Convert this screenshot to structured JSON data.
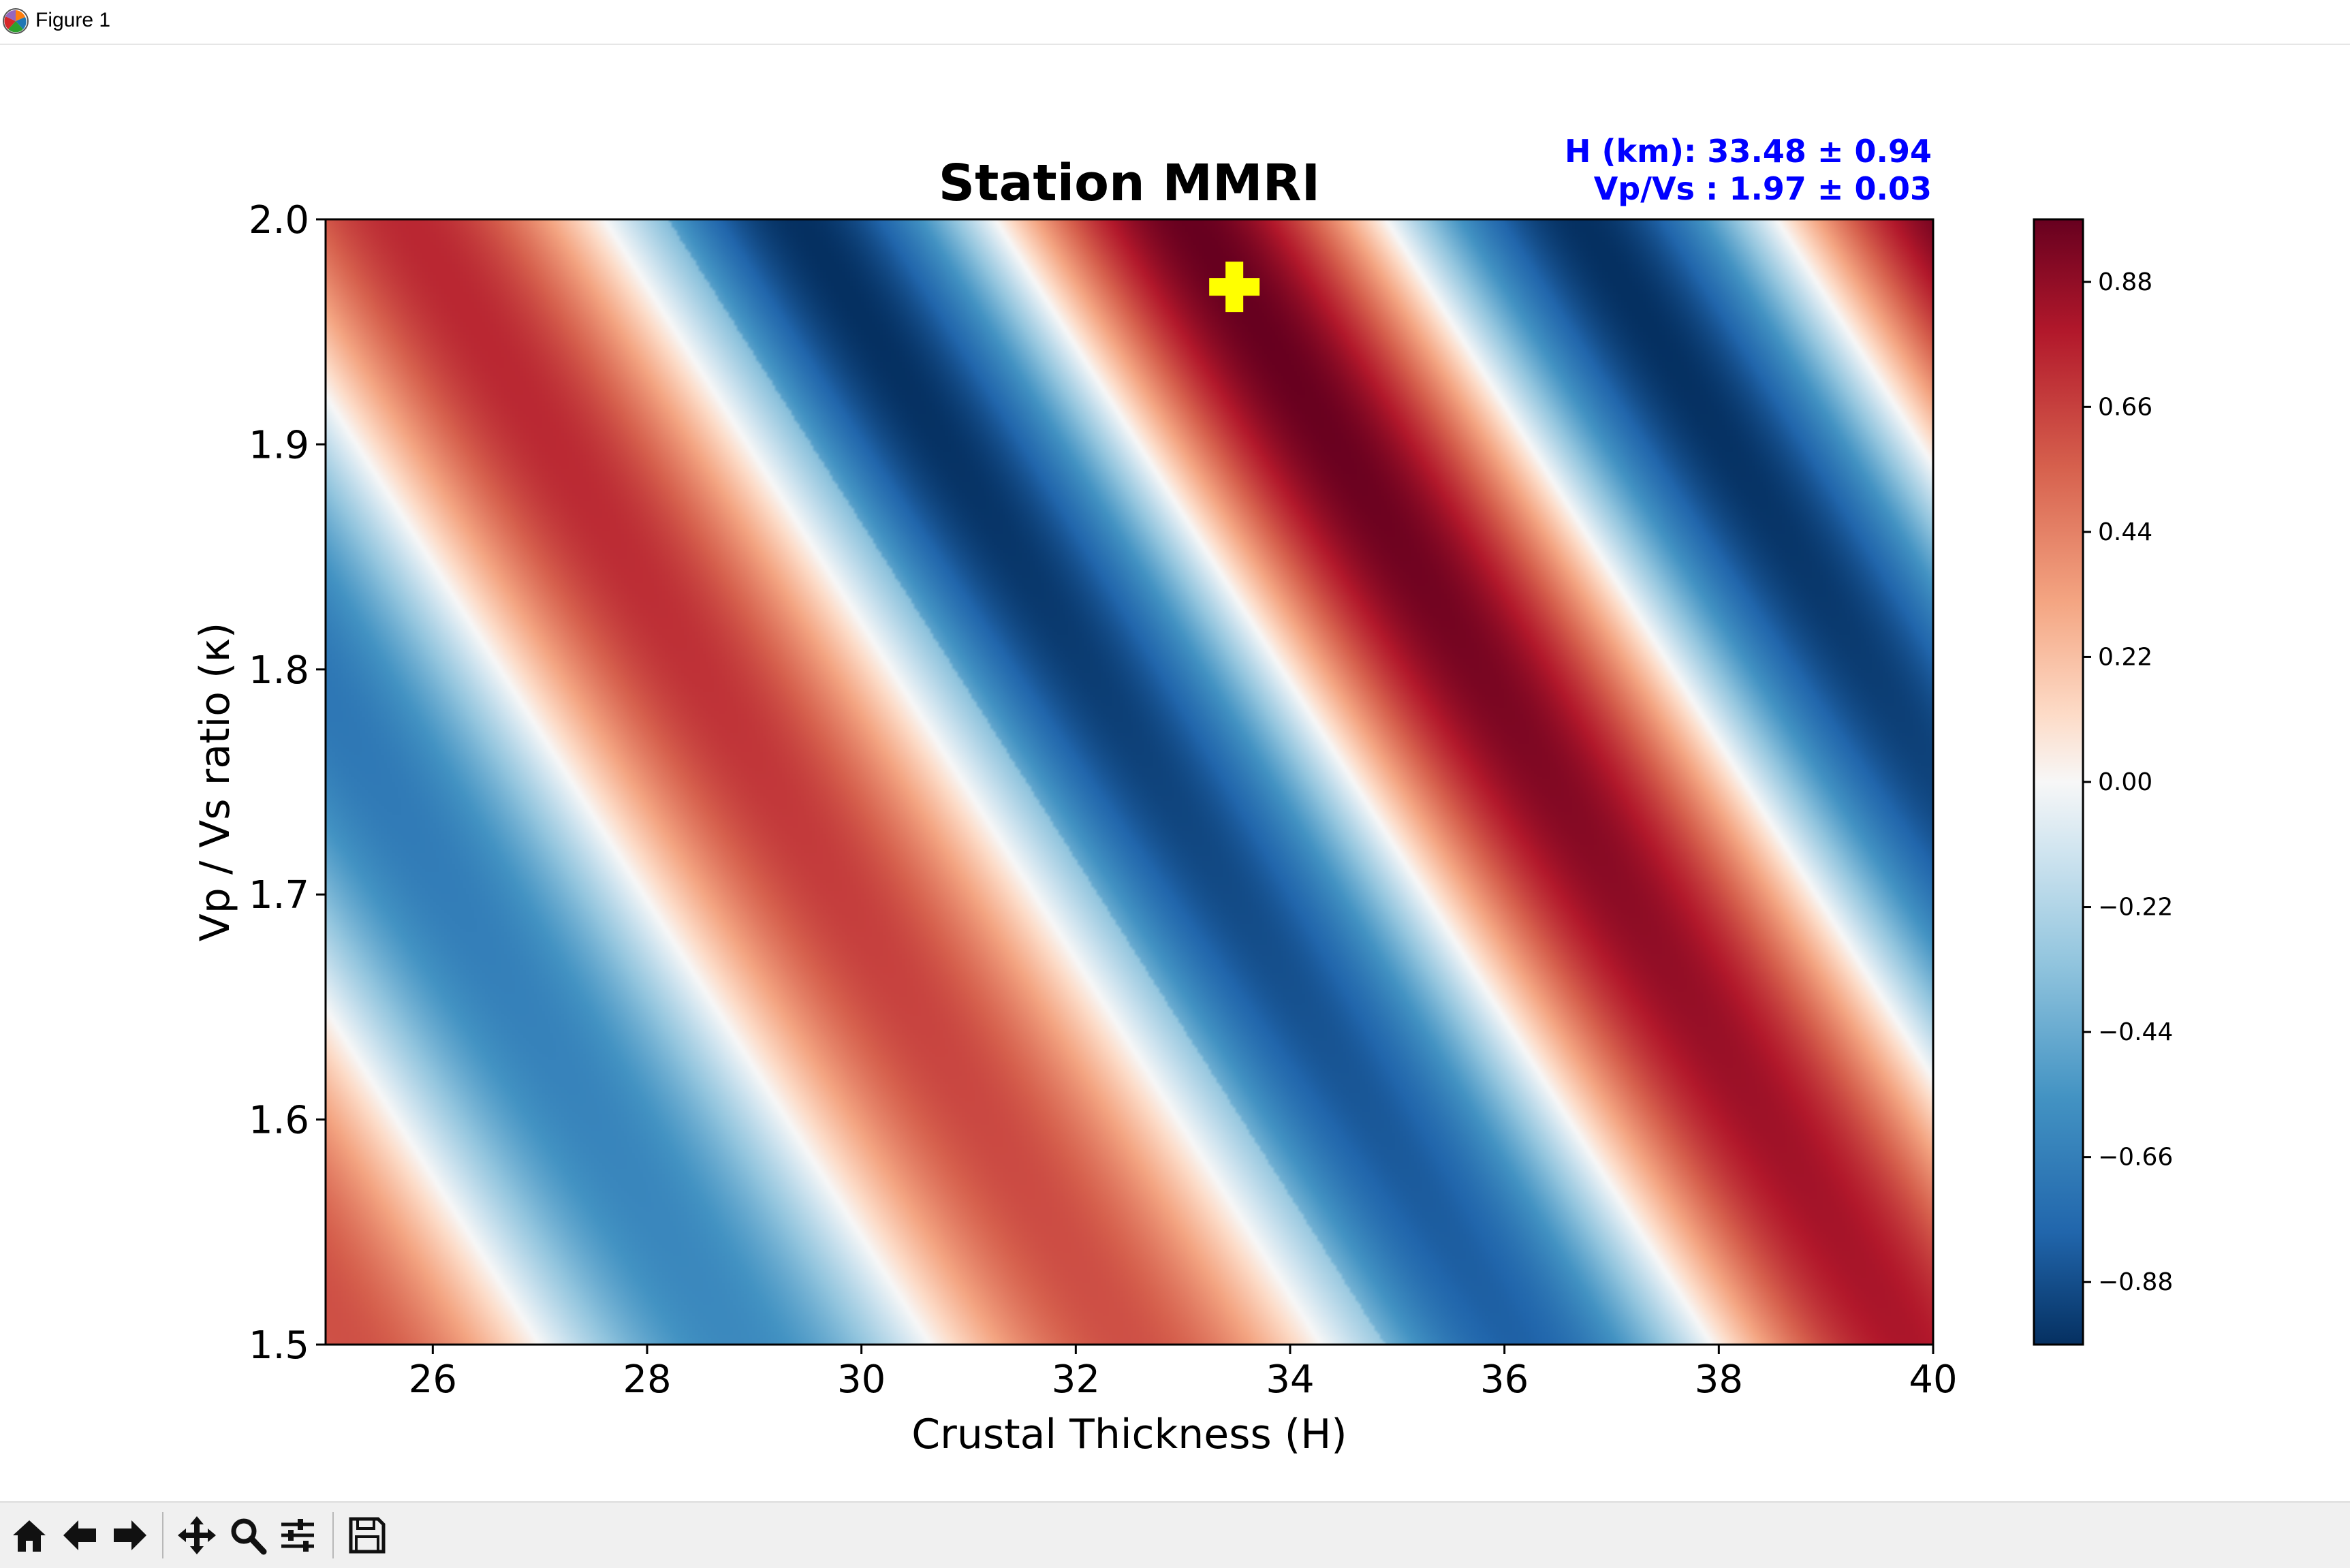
{
  "window": {
    "title": "Figure 1",
    "icon": "matplotlib-logo-icon"
  },
  "toolbar": {
    "buttons": [
      {
        "name": "home-button",
        "icon": "home-icon"
      },
      {
        "name": "back-button",
        "icon": "arrow-left-icon"
      },
      {
        "name": "forward-button",
        "icon": "arrow-right-icon"
      },
      {
        "name": "pan-button",
        "icon": "move-arrows-icon"
      },
      {
        "name": "zoom-button",
        "icon": "magnifier-icon"
      },
      {
        "name": "configure-subplots-button",
        "icon": "sliders-icon"
      },
      {
        "name": "save-button",
        "icon": "floppy-disk-icon"
      }
    ]
  },
  "chart_data": {
    "type": "heatmap",
    "title": "Station MMRI",
    "xlabel": "Crustal Thickness (H)",
    "ylabel": "Vp / Vs ratio (κ)",
    "xlim": [
      25,
      40
    ],
    "ylim": [
      1.5,
      2.0
    ],
    "xticks": [
      "26",
      "28",
      "30",
      "32",
      "34",
      "36",
      "38",
      "40"
    ],
    "yticks": [
      "1.5",
      "1.6",
      "1.7",
      "1.8",
      "1.9",
      "2.0"
    ],
    "colormap": "RdBu_r",
    "colorbar": {
      "range": [
        -0.99,
        0.99
      ],
      "ticks": [
        "0.88",
        "0.66",
        "0.44",
        "0.22",
        "0.00",
        "−0.22",
        "−0.44",
        "−0.66",
        "−0.88"
      ]
    },
    "marker": {
      "x": 33.48,
      "y": 1.97,
      "shape": "plus",
      "color": "#ffff00"
    },
    "stats": {
      "line1": "H (km): 33.48 ± 0.94",
      "line2": "Vp/Vs : 1.97 ± 0.03",
      "color": "#0000ff"
    }
  }
}
